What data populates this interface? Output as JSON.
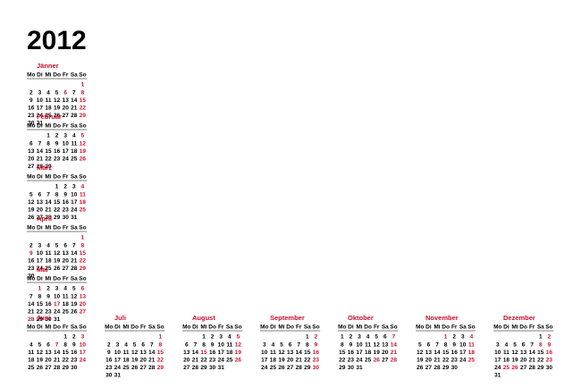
{
  "title": "2012",
  "weekdays": [
    "Mo",
    "Di",
    "Mi",
    "Do",
    "Fr",
    "Sa",
    "So"
  ],
  "months": [
    {
      "name": "Jänner",
      "weeks": [
        [
          null,
          null,
          null,
          null,
          null,
          null,
          1
        ],
        [
          2,
          3,
          4,
          5,
          6,
          7,
          8
        ],
        [
          9,
          10,
          11,
          12,
          13,
          14,
          15
        ],
        [
          16,
          17,
          18,
          19,
          20,
          21,
          22
        ],
        [
          23,
          24,
          25,
          26,
          27,
          28,
          29
        ],
        [
          30,
          31
        ]
      ],
      "red": [
        1,
        6,
        8,
        15,
        22,
        29
      ]
    },
    {
      "name": "Februar",
      "weeks": [
        [
          null,
          null,
          1,
          2,
          3,
          4,
          5
        ],
        [
          6,
          7,
          8,
          9,
          10,
          11,
          12
        ],
        [
          13,
          14,
          15,
          16,
          17,
          18,
          19
        ],
        [
          20,
          21,
          22,
          23,
          24,
          25,
          26
        ],
        [
          27,
          28,
          29
        ]
      ],
      "red": [
        5,
        12,
        19,
        26
      ]
    },
    {
      "name": "März",
      "weeks": [
        [
          null,
          null,
          null,
          1,
          2,
          3,
          4
        ],
        [
          5,
          6,
          7,
          8,
          9,
          10,
          11
        ],
        [
          12,
          13,
          14,
          15,
          16,
          17,
          18
        ],
        [
          19,
          20,
          21,
          22,
          23,
          24,
          25
        ],
        [
          26,
          27,
          28,
          29,
          30,
          31
        ]
      ],
      "red": [
        4,
        11,
        18,
        25
      ]
    },
    {
      "name": "April",
      "weeks": [
        [
          null,
          null,
          null,
          null,
          null,
          null,
          1
        ],
        [
          2,
          3,
          4,
          5,
          6,
          7,
          8
        ],
        [
          9,
          10,
          11,
          12,
          13,
          14,
          15
        ],
        [
          16,
          17,
          18,
          19,
          20,
          21,
          22
        ],
        [
          23,
          24,
          25,
          26,
          27,
          28,
          29
        ],
        [
          30
        ]
      ],
      "red": [
        1,
        8,
        9,
        15,
        22,
        29
      ]
    },
    {
      "name": "Mai",
      "weeks": [
        [
          null,
          1,
          2,
          3,
          4,
          5,
          6
        ],
        [
          7,
          8,
          9,
          10,
          11,
          12,
          13
        ],
        [
          14,
          15,
          16,
          17,
          18,
          19,
          20
        ],
        [
          21,
          22,
          23,
          24,
          25,
          26,
          27
        ],
        [
          28,
          29,
          30,
          31
        ]
      ],
      "red": [
        1,
        6,
        13,
        17,
        20,
        27,
        28
      ]
    },
    {
      "name": "Juni",
      "weeks": [
        [
          null,
          null,
          null,
          null,
          1,
          2,
          3
        ],
        [
          4,
          5,
          6,
          7,
          8,
          9,
          10
        ],
        [
          11,
          12,
          13,
          14,
          15,
          16,
          17
        ],
        [
          18,
          19,
          20,
          21,
          22,
          23,
          24
        ],
        [
          25,
          26,
          27,
          28,
          29,
          30
        ]
      ],
      "red": [
        3,
        7,
        10,
        17,
        24
      ]
    },
    {
      "name": "Juli",
      "weeks": [
        [
          null,
          null,
          null,
          null,
          null,
          null,
          1
        ],
        [
          2,
          3,
          4,
          5,
          6,
          7,
          8
        ],
        [
          9,
          10,
          11,
          12,
          13,
          14,
          15
        ],
        [
          16,
          17,
          18,
          19,
          20,
          21,
          22
        ],
        [
          23,
          24,
          25,
          26,
          27,
          28,
          29
        ],
        [
          30,
          31
        ]
      ],
      "red": [
        1,
        8,
        15,
        22,
        29
      ]
    },
    {
      "name": "August",
      "weeks": [
        [
          null,
          null,
          1,
          2,
          3,
          4,
          5
        ],
        [
          6,
          7,
          8,
          9,
          10,
          11,
          12
        ],
        [
          13,
          14,
          15,
          16,
          17,
          18,
          19
        ],
        [
          20,
          21,
          22,
          23,
          24,
          25,
          26
        ],
        [
          27,
          28,
          29,
          30,
          31
        ]
      ],
      "red": [
        5,
        12,
        15,
        19,
        26
      ]
    },
    {
      "name": "September",
      "weeks": [
        [
          null,
          null,
          null,
          null,
          null,
          1,
          2
        ],
        [
          3,
          4,
          5,
          6,
          7,
          8,
          9
        ],
        [
          10,
          11,
          12,
          13,
          14,
          15,
          16
        ],
        [
          17,
          18,
          19,
          20,
          21,
          22,
          23
        ],
        [
          24,
          25,
          26,
          27,
          28,
          29,
          30
        ]
      ],
      "red": [
        2,
        9,
        16,
        23,
        30
      ]
    },
    {
      "name": "Oktober",
      "weeks": [
        [
          1,
          2,
          3,
          4,
          5,
          6,
          7
        ],
        [
          8,
          9,
          10,
          11,
          12,
          13,
          14
        ],
        [
          15,
          16,
          17,
          18,
          19,
          20,
          21
        ],
        [
          22,
          23,
          24,
          25,
          26,
          27,
          28
        ],
        [
          29,
          30,
          31
        ]
      ],
      "red": [
        7,
        14,
        21,
        26,
        28
      ]
    },
    {
      "name": "November",
      "weeks": [
        [
          null,
          null,
          null,
          1,
          2,
          3,
          4
        ],
        [
          5,
          6,
          7,
          8,
          9,
          10,
          11
        ],
        [
          12,
          13,
          14,
          15,
          16,
          17,
          18
        ],
        [
          19,
          20,
          21,
          22,
          23,
          24,
          25
        ],
        [
          26,
          27,
          28,
          29,
          30
        ]
      ],
      "red": [
        1,
        4,
        11,
        18,
        25
      ]
    },
    {
      "name": "Dezember",
      "weeks": [
        [
          null,
          null,
          null,
          null,
          null,
          1,
          2
        ],
        [
          3,
          4,
          5,
          6,
          7,
          8,
          9
        ],
        [
          10,
          11,
          12,
          13,
          14,
          15,
          16
        ],
        [
          17,
          18,
          19,
          20,
          21,
          22,
          23
        ],
        [
          24,
          25,
          26,
          27,
          28,
          29,
          30
        ],
        [
          31
        ]
      ],
      "red": [
        2,
        8,
        9,
        16,
        23,
        25,
        26
      ]
    }
  ]
}
